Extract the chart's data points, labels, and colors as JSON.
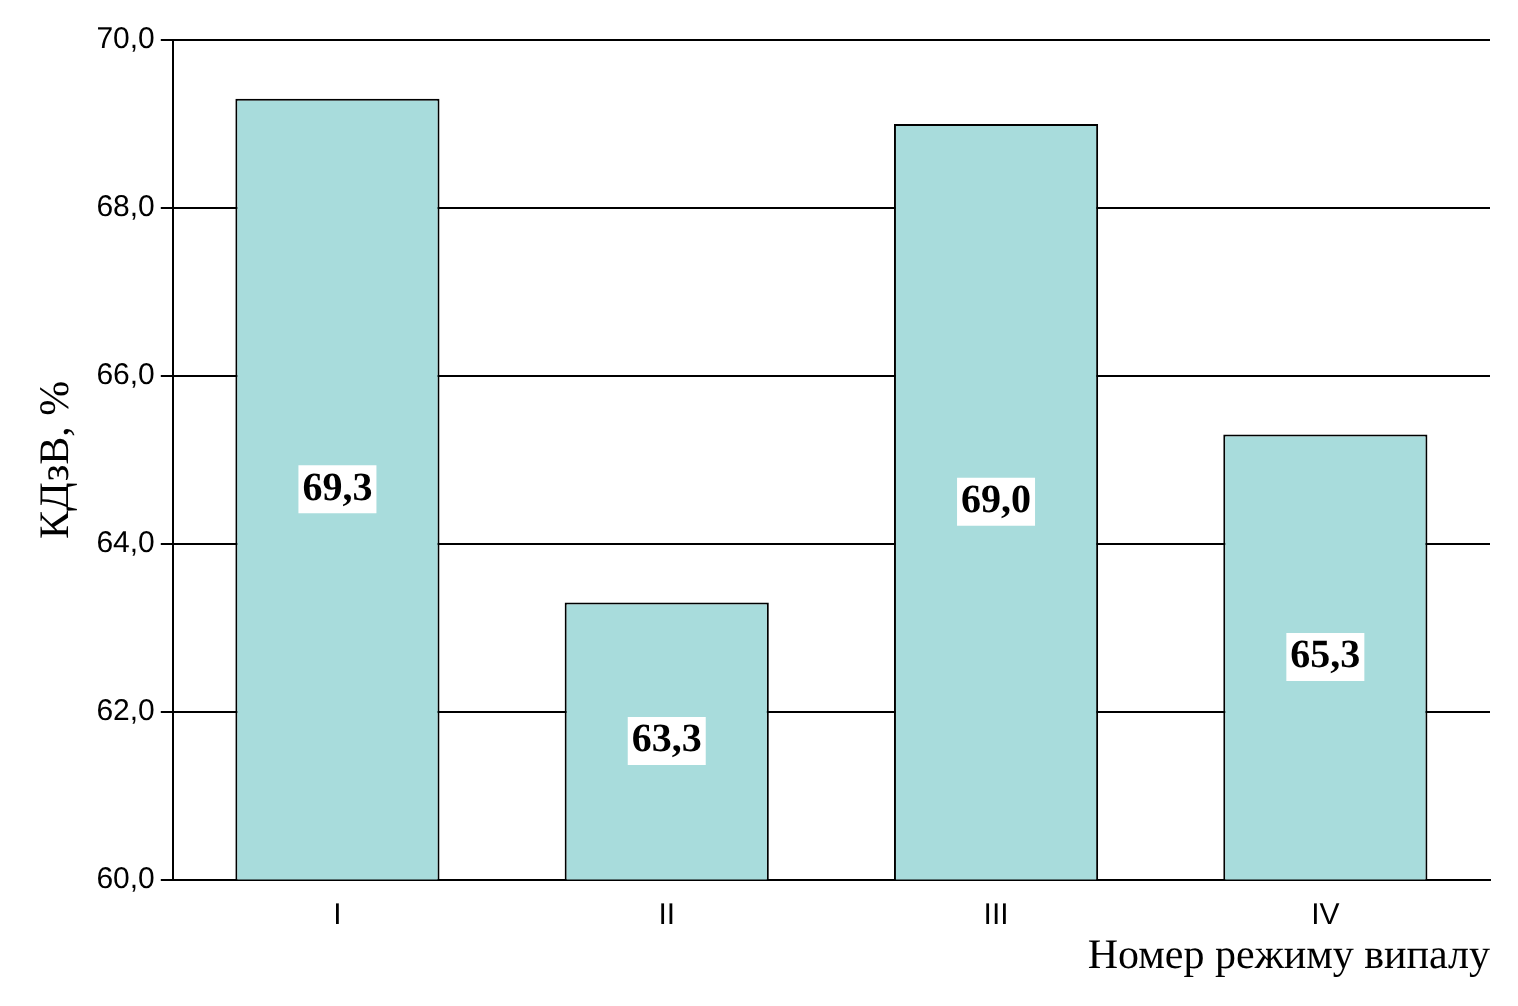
{
  "chart_data": {
    "type": "bar",
    "categories": [
      "I",
      "II",
      "III",
      "IV"
    ],
    "values": [
      69.3,
      63.3,
      69.0,
      65.3
    ],
    "color": "#a8dcdc",
    "value_labels": [
      "69,3",
      "63,3",
      "69,0",
      "65,3"
    ],
    "ylabel": "КДзВ, %",
    "xlabel": "Номер режиму випалу",
    "ylim": [
      60,
      70
    ],
    "yticks": [
      {
        "value": 60,
        "label": "60,0"
      },
      {
        "value": 62,
        "label": "62,0"
      },
      {
        "value": 64,
        "label": "64,0"
      },
      {
        "value": 66,
        "label": "66,0"
      },
      {
        "value": 68,
        "label": "68,0"
      },
      {
        "value": 70,
        "label": "70,0"
      }
    ],
    "grid": "y"
  }
}
